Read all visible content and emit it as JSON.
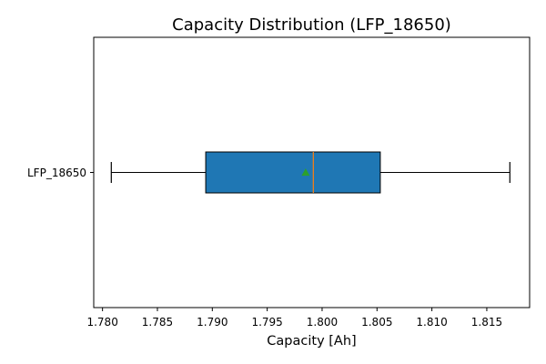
{
  "chart_data": {
    "type": "box",
    "orientation": "horizontal",
    "title": "Capacity Distribution (LFP_18650)",
    "xlabel": "Capacity [Ah]",
    "ylabel": "",
    "xlim": [
      1.7792,
      1.8189
    ],
    "x_ticks": [
      "1.780",
      "1.785",
      "1.790",
      "1.795",
      "1.800",
      "1.805",
      "1.810",
      "1.815"
    ],
    "x_tick_values": [
      1.78,
      1.785,
      1.79,
      1.795,
      1.8,
      1.805,
      1.81,
      1.815
    ],
    "categories": [
      "LFP_18650"
    ],
    "boxes": [
      {
        "name": "LFP_18650",
        "whisker_low": 1.7808,
        "q1": 1.7894,
        "median": 1.7992,
        "q3": 1.8053,
        "whisker_high": 1.8171,
        "mean": 1.7985
      }
    ],
    "grid": false,
    "colors": {
      "box_fill": "#1f77b4",
      "median": "#ff7f0e",
      "mean_marker": "#2ca02c",
      "lines": "#000000"
    }
  }
}
